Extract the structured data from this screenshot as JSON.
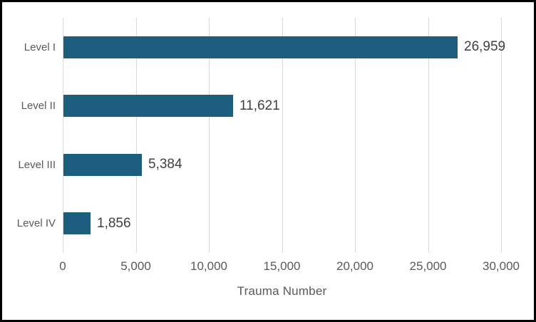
{
  "chart": {
    "colors": {
      "bar": "#1d5e7e",
      "gridline": "#d9d9d9",
      "axis_text": "#595959",
      "data_label": "#404040",
      "border": "#000000",
      "background": "#ffffff"
    }
  },
  "chart_data": {
    "type": "bar",
    "orientation": "horizontal",
    "categories": [
      "Level I",
      "Level II",
      "Level III",
      "Level IV"
    ],
    "values": [
      26959,
      11621,
      5384,
      1856
    ],
    "data_labels": [
      "26,959",
      "11,621",
      "5,384",
      "1,856"
    ],
    "xlabel": "Trauma Number",
    "ylabel": "",
    "xlim": [
      0,
      30000
    ],
    "xticks": [
      0,
      5000,
      10000,
      15000,
      20000,
      25000,
      30000
    ],
    "xtick_labels": [
      "0",
      "5,000",
      "10,000",
      "15,000",
      "20,000",
      "25,000",
      "30,000"
    ],
    "grid": "vertical-only",
    "legend": "none",
    "title": ""
  }
}
